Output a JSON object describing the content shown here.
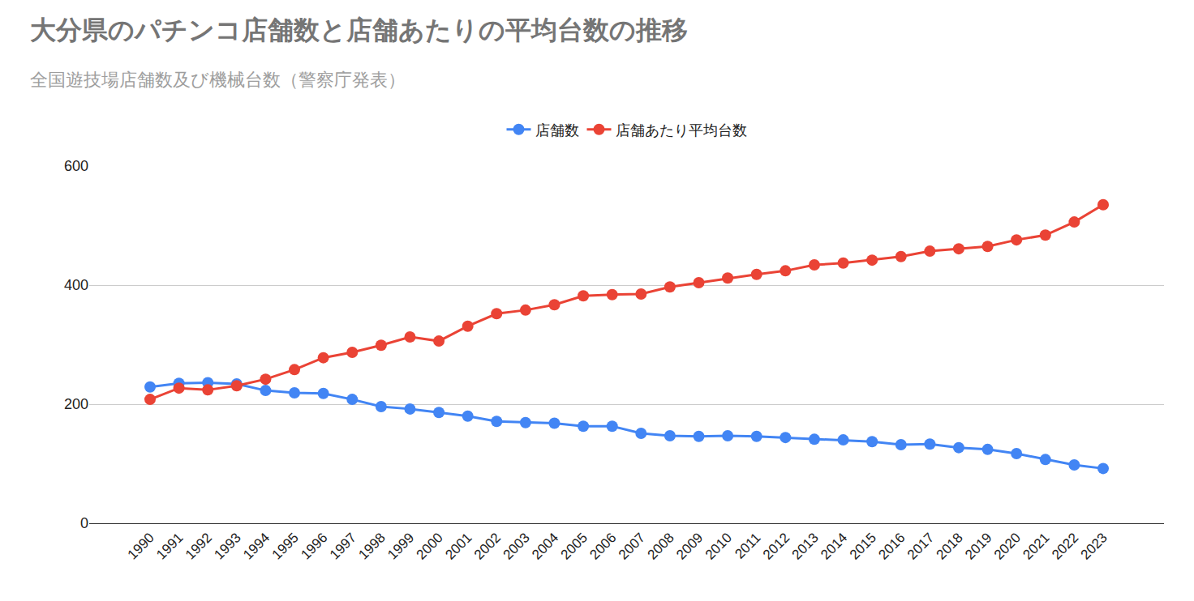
{
  "chart_data": {
    "type": "line",
    "title": "大分県のパチンコ店舗数と店舗あたりの平均台数の推移",
    "subtitle": "全国遊技場店舗数及び機械台数（警察庁発表）",
    "categories": [
      "1990",
      "1991",
      "1992",
      "1993",
      "1994",
      "1995",
      "1996",
      "1997",
      "1998",
      "1999",
      "2000",
      "2001",
      "2002",
      "2003",
      "2004",
      "2005",
      "2006",
      "2007",
      "2008",
      "2009",
      "2010",
      "2011",
      "2012",
      "2013",
      "2014",
      "2015",
      "2016",
      "2017",
      "2018",
      "2019",
      "2020",
      "2021",
      "2022",
      "2023"
    ],
    "series": [
      {
        "name": "店舗数",
        "color": "#4285f4",
        "marker": "circle",
        "line_style": "solid",
        "values": [
          229,
          235,
          236,
          234,
          223,
          219,
          218,
          208,
          196,
          192,
          186,
          180,
          171,
          169,
          168,
          163,
          163,
          151,
          147,
          146,
          147,
          146,
          144,
          141,
          140,
          137,
          132,
          133,
          127,
          124,
          117,
          107,
          98,
          92
        ]
      },
      {
        "name": "店舗あたり平均台数",
        "color": "#ea4335",
        "marker": "circle",
        "line_style": "solid",
        "values": [
          208,
          227,
          224,
          231,
          242,
          258,
          278,
          287,
          299,
          313,
          306,
          331,
          352,
          358,
          367,
          382,
          384,
          385,
          397,
          404,
          412,
          418,
          424,
          434,
          437,
          442,
          448,
          457,
          461,
          465,
          476,
          484,
          506,
          535
        ]
      }
    ],
    "ylim": [
      0,
      600
    ],
    "yticks": [
      0,
      200,
      400,
      600
    ],
    "grid": true,
    "legend": "top"
  }
}
